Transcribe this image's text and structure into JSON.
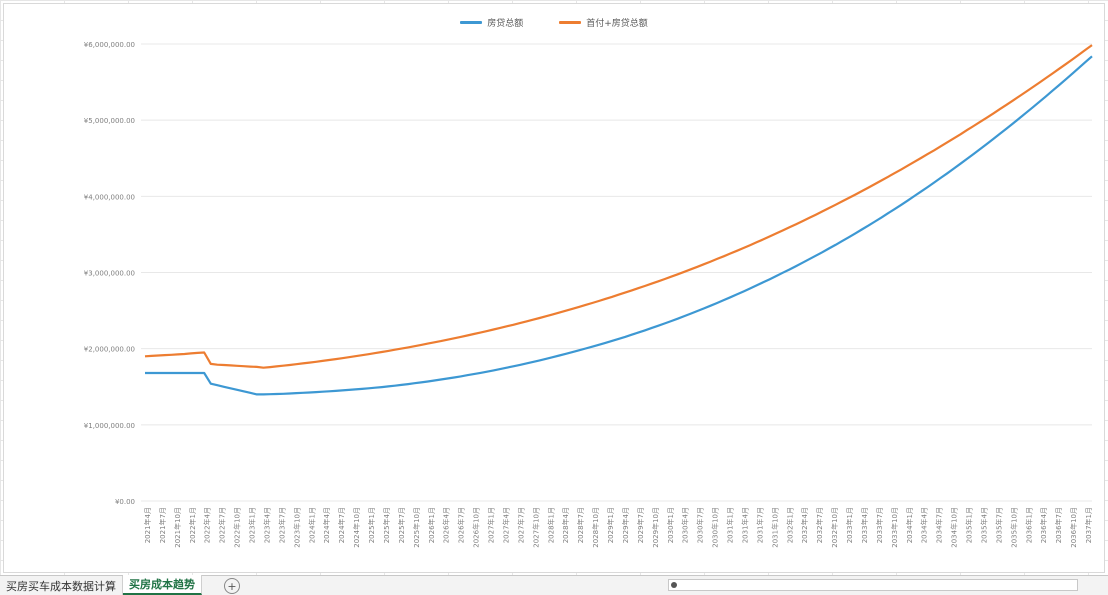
{
  "sheet_tabs": [
    {
      "label": "买房买车成本数据计算",
      "active": false
    },
    {
      "label": "买房成本趋势",
      "active": true
    }
  ],
  "add_sheet_icon": "plus-circle-icon",
  "colors": {
    "series1": "#3d98d3",
    "series2": "#ed7d31",
    "grid": "#e8e8e8",
    "axis_text": "#7f7f7f"
  },
  "chart_data": {
    "type": "line",
    "title": "",
    "xlabel": "",
    "ylabel": "",
    "ylim": [
      0,
      6000000
    ],
    "y_ticks": [
      "¥0.00",
      "¥1,000,000.00",
      "¥2,000,000.00",
      "¥3,000,000.00",
      "¥4,000,000.00",
      "¥5,000,000.00",
      "¥6,000,000.00"
    ],
    "legend": "top-center",
    "x_first": "2021年4月",
    "x_last": "2037年3月",
    "x_step_months": 3,
    "series": [
      {
        "name": "房贷总额",
        "color": "#3d98d3",
        "values": [
          1680000,
          1680000,
          1680000,
          1680000,
          1680000,
          1680000,
          1680000,
          1680000,
          1680000,
          1680000,
          1540000,
          1520000,
          1500000,
          1480000,
          1460000,
          1440000,
          1420000,
          1400000,
          1400000,
          1402000,
          1405000,
          1408000,
          1412000,
          1416000,
          1420000,
          1425000,
          1430000,
          1435000,
          1440000,
          1446000,
          1452000,
          1458000,
          1465000,
          1472000,
          1480000,
          1488000,
          1496000,
          1505000,
          1514000,
          1524000,
          1535000,
          1546000,
          1557000,
          1569000,
          1582000,
          1595000,
          1608000,
          1622000,
          1636000,
          1651000,
          1666000,
          1682000,
          1698000,
          1715000,
          1732000,
          1750000,
          1768000,
          1787000,
          1806000,
          1826000,
          1846000,
          1867000,
          1888000,
          1910000,
          1932000,
          1955000,
          1978000,
          2002000,
          2026000,
          2051000,
          2076000,
          2102000,
          2128000,
          2155000,
          2183000,
          2211000,
          2240000,
          2270000,
          2300000,
          2331000,
          2362000,
          2394000,
          2427000,
          2460000,
          2494000,
          2529000,
          2564000,
          2600000,
          2637000,
          2674000,
          2712000,
          2751000,
          2790000,
          2830000,
          2871000,
          2912000,
          2954000,
          2997000,
          3040000,
          3084000,
          3129000,
          3174000,
          3220000,
          3267000,
          3315000,
          3363000,
          3412000,
          3462000,
          3513000,
          3564000,
          3616000,
          3669000,
          3723000,
          3778000,
          3833000,
          3889000,
          3946000,
          4004000,
          4062000,
          4121000,
          4181000,
          4242000,
          4303000,
          4365000,
          4428000,
          4492000,
          4556000,
          4621000,
          4687000,
          4754000,
          4821000,
          4889000,
          4958000,
          5028000,
          5098000,
          5169000,
          5241000,
          5314000,
          5387000,
          5461000,
          5535000,
          5610000,
          5686000,
          5762000,
          5838000
        ]
      },
      {
        "name": "首付+房贷总额",
        "color": "#ed7d31",
        "values": [
          1900000,
          1905000,
          1910000,
          1915000,
          1920000,
          1925000,
          1930000,
          1938000,
          1945000,
          1950000,
          1800000,
          1790000,
          1785000,
          1780000,
          1775000,
          1770000,
          1765000,
          1760000,
          1750000,
          1758000,
          1767000,
          1776000,
          1786000,
          1796000,
          1806000,
          1817000,
          1828000,
          1839000,
          1851000,
          1863000,
          1875000,
          1888000,
          1901000,
          1914000,
          1928000,
          1942000,
          1956000,
          1971000,
          1986000,
          2001000,
          2017000,
          2033000,
          2049000,
          2066000,
          2083000,
          2100000,
          2118000,
          2136000,
          2154000,
          2173000,
          2192000,
          2211000,
          2231000,
          2251000,
          2272000,
          2293000,
          2314000,
          2336000,
          2358000,
          2380000,
          2403000,
          2426000,
          2450000,
          2474000,
          2498000,
          2523000,
          2548000,
          2574000,
          2600000,
          2626000,
          2653000,
          2680000,
          2708000,
          2736000,
          2765000,
          2794000,
          2823000,
          2853000,
          2883000,
          2914000,
          2945000,
          2977000,
          3009000,
          3042000,
          3075000,
          3109000,
          3143000,
          3178000,
          3213000,
          3249000,
          3285000,
          3322000,
          3359000,
          3397000,
          3435000,
          3474000,
          3513000,
          3553000,
          3593000,
          3634000,
          3675000,
          3717000,
          3759000,
          3802000,
          3845000,
          3889000,
          3933000,
          3978000,
          4023000,
          4069000,
          4115000,
          4162000,
          4209000,
          4257000,
          4305000,
          4354000,
          4403000,
          4453000,
          4503000,
          4554000,
          4605000,
          4657000,
          4709000,
          4762000,
          4815000,
          4869000,
          4923000,
          4978000,
          5033000,
          5089000,
          5145000,
          5202000,
          5259000,
          5317000,
          5375000,
          5434000,
          5493000,
          5553000,
          5613000,
          5674000,
          5735000,
          5797000,
          5859000,
          5922000,
          5985000
        ]
      }
    ]
  }
}
